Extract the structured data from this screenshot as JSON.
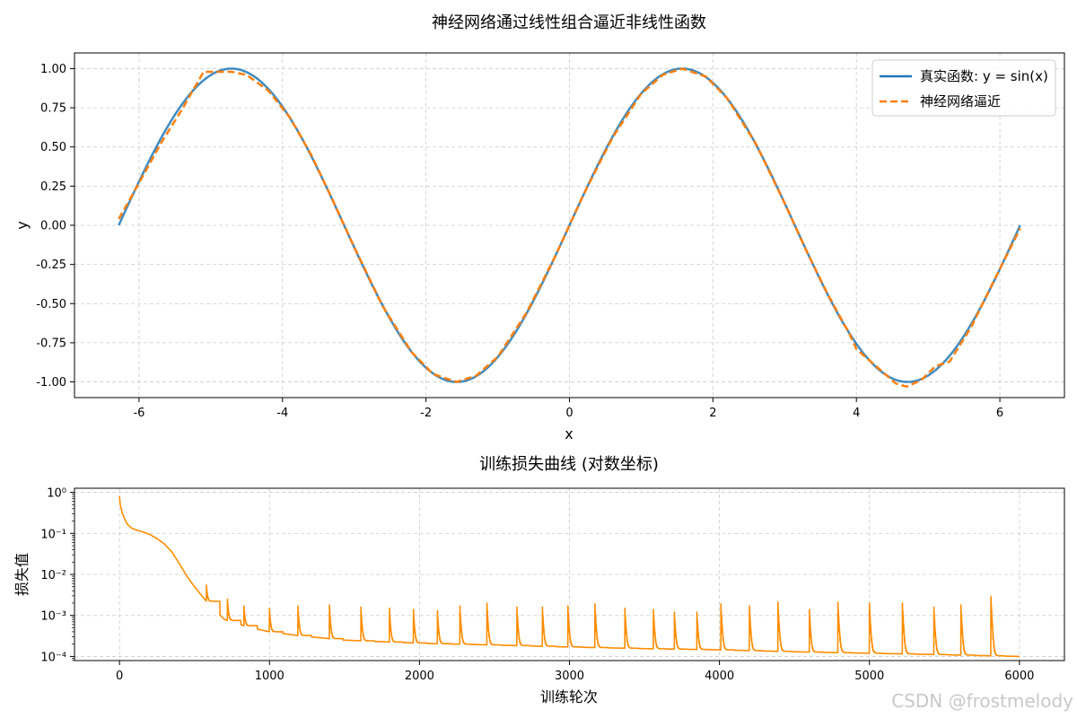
{
  "chart_data": [
    {
      "type": "line",
      "title": "神经网络通过线性组合逼近非线性函数",
      "xlabel": "x",
      "ylabel": "y",
      "xlim": [
        -6.9,
        6.9
      ],
      "ylim": [
        -1.1,
        1.1
      ],
      "xticks": [
        -6,
        -4,
        -2,
        0,
        2,
        4,
        6
      ],
      "xtick_labels": [
        "-6",
        "-4",
        "-2",
        "0",
        "2",
        "4",
        "6"
      ],
      "yticks": [
        1.0,
        0.75,
        0.5,
        0.25,
        0.0,
        -0.25,
        -0.5,
        -0.75,
        -1.0
      ],
      "ytick_labels": [
        "1.00",
        "0.75",
        "0.50",
        "0.25",
        "0.00",
        "-0.25",
        "-0.50",
        "-0.75",
        "-1.00"
      ],
      "grid": true,
      "legend_position": "top-right",
      "series": [
        {
          "name": "真实函数: y = sin(x)",
          "color": "#1f77b4",
          "style": "solid",
          "function": "sin(x)",
          "x_range": [
            -6.283,
            6.283
          ]
        },
        {
          "name": "神经网络逼近",
          "color": "#ff7f0e",
          "style": "dashed",
          "x": [
            -6.283,
            -6.0,
            -5.7,
            -5.4,
            -5.1,
            -4.9,
            -4.712,
            -4.5,
            -4.2,
            -3.9,
            -3.6,
            -3.3,
            -3.0,
            -2.6,
            -2.2,
            -1.9,
            -1.571,
            -1.3,
            -1.0,
            -0.6,
            -0.2,
            0.0,
            0.2,
            0.6,
            1.0,
            1.3,
            1.571,
            1.9,
            2.2,
            2.6,
            3.0,
            3.3,
            3.6,
            3.9,
            4.0,
            4.3,
            4.55,
            4.7,
            4.9,
            5.1,
            5.3,
            5.6,
            5.9,
            6.283
          ],
          "y": [
            0.04,
            0.27,
            0.52,
            0.74,
            0.98,
            0.98,
            0.98,
            0.96,
            0.86,
            0.69,
            0.45,
            0.16,
            -0.14,
            -0.52,
            -0.81,
            -0.95,
            -1.0,
            -0.96,
            -0.84,
            -0.56,
            -0.2,
            0.0,
            0.2,
            0.56,
            0.84,
            0.96,
            1.0,
            0.95,
            0.81,
            0.52,
            0.14,
            -0.16,
            -0.44,
            -0.69,
            -0.79,
            -0.91,
            -1.01,
            -1.03,
            -0.99,
            -0.9,
            -0.87,
            -0.65,
            -0.37,
            -0.02
          ]
        }
      ]
    },
    {
      "type": "line",
      "title": "训练损失曲线 (对数坐标)",
      "xlabel": "训练轮次",
      "ylabel": "损失值",
      "xlim": [
        -300,
        6300
      ],
      "ylim_log10": [
        -4.1,
        0.1
      ],
      "y_scale": "log",
      "xticks": [
        0,
        1000,
        2000,
        3000,
        4000,
        5000,
        6000
      ],
      "xtick_labels": [
        "0",
        "1000",
        "2000",
        "3000",
        "4000",
        "5000",
        "6000"
      ],
      "yticks_log10": [
        0,
        -1,
        -2,
        -3,
        -4
      ],
      "ytick_labels": [
        "10⁰",
        "10⁻¹",
        "10⁻²",
        "10⁻³",
        "10⁻⁴"
      ],
      "grid": true,
      "series": [
        {
          "color": "#ff8c00",
          "base_curve": {
            "x": [
              0,
              5,
              20,
              50,
              80,
              100,
              150,
              200,
              250,
              300,
              350,
              400,
              450,
              500,
              550,
              600,
              650,
              700,
              800,
              900,
              1000,
              1200,
              1500,
              2000,
              2500,
              3000,
              3500,
              4000,
              4500,
              5000,
              5500,
              6000
            ],
            "loss": [
              0.8,
              0.5,
              0.3,
              0.17,
              0.135,
              0.125,
              0.11,
              0.095,
              0.075,
              0.055,
              0.035,
              0.018,
              0.009,
              0.005,
              0.003,
              0.0018,
              0.0012,
              0.0008,
              0.0006,
              0.00048,
              0.0004,
              0.00032,
              0.00025,
              0.00021,
              0.00019,
              0.00017,
              0.000155,
              0.000145,
              0.00013,
              0.00012,
              0.00011,
              0.0001
            ]
          },
          "spikes": {
            "x": [
              580,
              720,
              830,
              1000,
              1190,
              1400,
              1610,
              1800,
              1960,
              2120,
              2270,
              2450,
              2650,
              2820,
              2990,
              3170,
              3370,
              3560,
              3700,
              3850,
              4010,
              4200,
              4390,
              4600,
              4790,
              5000,
              5220,
              5430,
              5610,
              5810
            ],
            "peak_loss": [
              0.0055,
              0.0025,
              0.0017,
              0.0015,
              0.0017,
              0.0018,
              0.0016,
              0.0015,
              0.0014,
              0.0013,
              0.0017,
              0.002,
              0.0016,
              0.0016,
              0.0017,
              0.0019,
              0.0015,
              0.0014,
              0.0012,
              0.0012,
              0.0019,
              0.0017,
              0.0021,
              0.0014,
              0.0021,
              0.002,
              0.002,
              0.0016,
              0.0018,
              0.0029
            ]
          }
        }
      ]
    }
  ],
  "watermark": "CSDN @frostmelody"
}
